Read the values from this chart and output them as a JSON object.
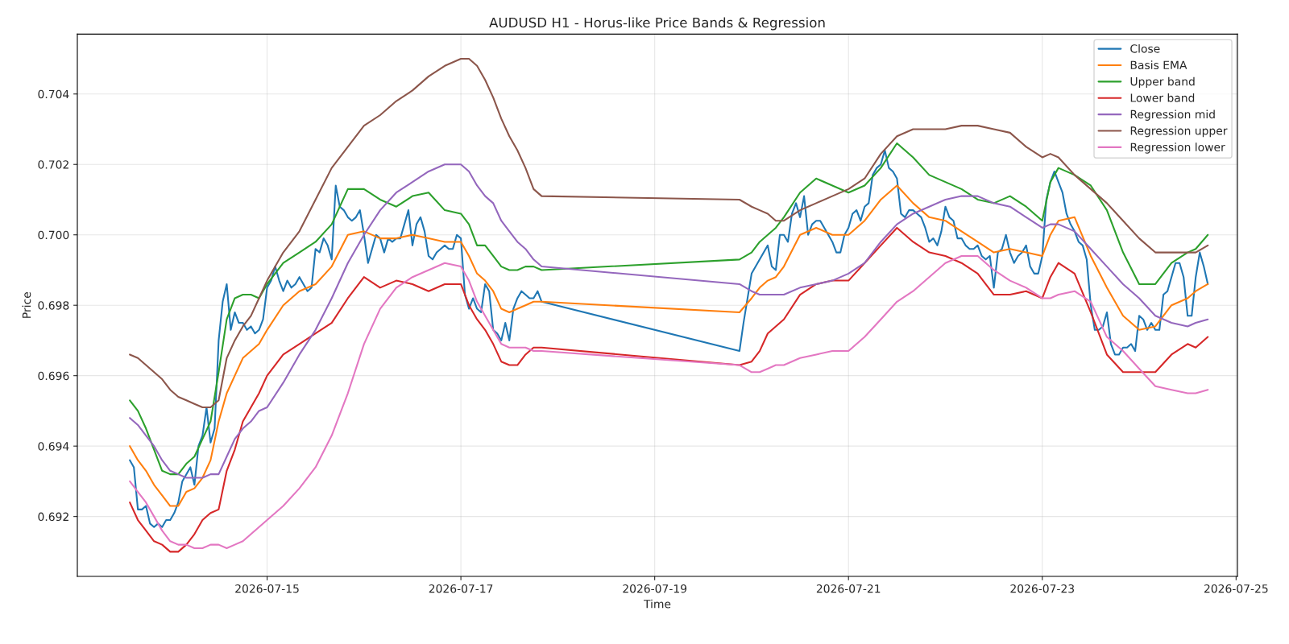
{
  "chart_data": {
    "type": "line",
    "title": "AUDUSD H1 - Horus-like Price Bands & Regression",
    "xlabel": "Time",
    "ylabel": "Price",
    "xlim": [
      "2026-07-13T01:00",
      "2026-07-25T00:20"
    ],
    "xticks": [
      "2026-07-15",
      "2026-07-17",
      "2026-07-19",
      "2026-07-21",
      "2026-07-23",
      "2026-07-25"
    ],
    "ylim": [
      0.6903,
      0.7057
    ],
    "yticks": [
      {
        "value": 0.692,
        "label": "0.692"
      },
      {
        "value": 0.694,
        "label": "0.694"
      },
      {
        "value": 0.696,
        "label": "0.696"
      },
      {
        "value": 0.698,
        "label": "0.698"
      },
      {
        "value": 0.7,
        "label": "0.700"
      },
      {
        "value": 0.702,
        "label": "0.702"
      },
      {
        "value": 0.704,
        "label": "0.704"
      }
    ],
    "grid": true,
    "legend": "top right",
    "marker": "none",
    "line_style": "solid",
    "x": [
      "2026-07-13T14:00",
      "2026-07-13T16:00",
      "2026-07-13T18:00",
      "2026-07-13T20:00",
      "2026-07-13T22:00",
      "2026-07-14T00:00",
      "2026-07-14T02:00",
      "2026-07-14T04:00",
      "2026-07-14T06:00",
      "2026-07-14T08:00",
      "2026-07-14T10:00",
      "2026-07-14T12:00",
      "2026-07-14T14:00",
      "2026-07-14T16:00",
      "2026-07-14T18:00",
      "2026-07-14T20:00",
      "2026-07-14T22:00",
      "2026-07-15T00:00",
      "2026-07-15T04:00",
      "2026-07-15T08:00",
      "2026-07-15T12:00",
      "2026-07-15T16:00",
      "2026-07-15T20:00",
      "2026-07-16T00:00",
      "2026-07-16T04:00",
      "2026-07-16T08:00",
      "2026-07-16T12:00",
      "2026-07-16T16:00",
      "2026-07-16T20:00",
      "2026-07-17T00:00",
      "2026-07-17T02:00",
      "2026-07-17T04:00",
      "2026-07-17T06:00",
      "2026-07-17T08:00",
      "2026-07-17T10:00",
      "2026-07-17T12:00",
      "2026-07-17T14:00",
      "2026-07-17T16:00",
      "2026-07-17T18:00",
      "2026-07-17T20:00",
      "2026-07-19T21:00",
      "2026-07-20T00:00",
      "2026-07-20T02:00",
      "2026-07-20T04:00",
      "2026-07-20T06:00",
      "2026-07-20T08:00",
      "2026-07-20T12:00",
      "2026-07-20T16:00",
      "2026-07-20T20:00",
      "2026-07-21T00:00",
      "2026-07-21T04:00",
      "2026-07-21T08:00",
      "2026-07-21T12:00",
      "2026-07-21T16:00",
      "2026-07-21T20:00",
      "2026-07-22T00:00",
      "2026-07-22T04:00",
      "2026-07-22T08:00",
      "2026-07-22T12:00",
      "2026-07-22T16:00",
      "2026-07-22T20:00",
      "2026-07-23T00:00",
      "2026-07-23T02:00",
      "2026-07-23T04:00",
      "2026-07-23T08:00",
      "2026-07-23T12:00",
      "2026-07-23T16:00",
      "2026-07-23T20:00",
      "2026-07-24T00:00",
      "2026-07-24T04:00",
      "2026-07-24T08:00",
      "2026-07-24T12:00",
      "2026-07-24T14:00",
      "2026-07-24T17:00"
    ],
    "series": [
      {
        "name": "Close",
        "color": "#1f77b4",
        "x": [
          "2026-07-13T14:00",
          "2026-07-13T15:00",
          "2026-07-13T16:00",
          "2026-07-13T17:00",
          "2026-07-13T18:00",
          "2026-07-13T19:00",
          "2026-07-13T20:00",
          "2026-07-13T21:00",
          "2026-07-13T22:00",
          "2026-07-13T23:00",
          "2026-07-14T00:00",
          "2026-07-14T01:00",
          "2026-07-14T02:00",
          "2026-07-14T03:00",
          "2026-07-14T04:00",
          "2026-07-14T05:00",
          "2026-07-14T06:00",
          "2026-07-14T07:00",
          "2026-07-14T08:00",
          "2026-07-14T09:00",
          "2026-07-14T10:00",
          "2026-07-14T11:00",
          "2026-07-14T12:00",
          "2026-07-14T13:00",
          "2026-07-14T14:00",
          "2026-07-14T15:00",
          "2026-07-14T16:00",
          "2026-07-14T17:00",
          "2026-07-14T18:00",
          "2026-07-14T19:00",
          "2026-07-14T20:00",
          "2026-07-14T21:00",
          "2026-07-14T22:00",
          "2026-07-14T23:00",
          "2026-07-15T00:00",
          "2026-07-15T01:00",
          "2026-07-15T02:00",
          "2026-07-15T03:00",
          "2026-07-15T04:00",
          "2026-07-15T05:00",
          "2026-07-15T06:00",
          "2026-07-15T07:00",
          "2026-07-15T08:00",
          "2026-07-15T09:00",
          "2026-07-15T10:00",
          "2026-07-15T11:00",
          "2026-07-15T12:00",
          "2026-07-15T13:00",
          "2026-07-15T14:00",
          "2026-07-15T15:00",
          "2026-07-15T16:00",
          "2026-07-15T17:00",
          "2026-07-15T18:00",
          "2026-07-15T19:00",
          "2026-07-15T20:00",
          "2026-07-15T21:00",
          "2026-07-15T22:00",
          "2026-07-15T23:00",
          "2026-07-16T00:00",
          "2026-07-16T01:00",
          "2026-07-16T02:00",
          "2026-07-16T03:00",
          "2026-07-16T04:00",
          "2026-07-16T05:00",
          "2026-07-16T06:00",
          "2026-07-16T07:00",
          "2026-07-16T08:00",
          "2026-07-16T09:00",
          "2026-07-16T10:00",
          "2026-07-16T11:00",
          "2026-07-16T12:00",
          "2026-07-16T13:00",
          "2026-07-16T14:00",
          "2026-07-16T15:00",
          "2026-07-16T16:00",
          "2026-07-16T17:00",
          "2026-07-16T18:00",
          "2026-07-16T19:00",
          "2026-07-16T20:00",
          "2026-07-16T21:00",
          "2026-07-16T22:00",
          "2026-07-16T23:00",
          "2026-07-17T00:00",
          "2026-07-17T01:00",
          "2026-07-17T02:00",
          "2026-07-17T03:00",
          "2026-07-17T04:00",
          "2026-07-17T05:00",
          "2026-07-17T06:00",
          "2026-07-17T07:00",
          "2026-07-17T08:00",
          "2026-07-17T09:00",
          "2026-07-17T10:00",
          "2026-07-17T11:00",
          "2026-07-17T12:00",
          "2026-07-17T13:00",
          "2026-07-17T14:00",
          "2026-07-17T15:00",
          "2026-07-17T16:00",
          "2026-07-17T17:00",
          "2026-07-17T18:00",
          "2026-07-17T19:00",
          "2026-07-17T20:00",
          "2026-07-19T21:00",
          "2026-07-19T22:00",
          "2026-07-19T23:00",
          "2026-07-20T00:00",
          "2026-07-20T01:00",
          "2026-07-20T02:00",
          "2026-07-20T03:00",
          "2026-07-20T04:00",
          "2026-07-20T05:00",
          "2026-07-20T06:00",
          "2026-07-20T07:00",
          "2026-07-20T08:00",
          "2026-07-20T09:00",
          "2026-07-20T10:00",
          "2026-07-20T11:00",
          "2026-07-20T12:00",
          "2026-07-20T13:00",
          "2026-07-20T14:00",
          "2026-07-20T15:00",
          "2026-07-20T16:00",
          "2026-07-20T17:00",
          "2026-07-20T18:00",
          "2026-07-20T19:00",
          "2026-07-20T20:00",
          "2026-07-20T21:00",
          "2026-07-20T22:00",
          "2026-07-20T23:00",
          "2026-07-21T00:00",
          "2026-07-21T01:00",
          "2026-07-21T02:00",
          "2026-07-21T03:00",
          "2026-07-21T04:00",
          "2026-07-21T05:00",
          "2026-07-21T06:00",
          "2026-07-21T07:00",
          "2026-07-21T08:00",
          "2026-07-21T09:00",
          "2026-07-21T10:00",
          "2026-07-21T11:00",
          "2026-07-21T12:00",
          "2026-07-21T13:00",
          "2026-07-21T14:00",
          "2026-07-21T15:00",
          "2026-07-21T16:00",
          "2026-07-21T17:00",
          "2026-07-21T18:00",
          "2026-07-21T19:00",
          "2026-07-21T20:00",
          "2026-07-21T21:00",
          "2026-07-21T22:00",
          "2026-07-21T23:00",
          "2026-07-22T00:00",
          "2026-07-22T01:00",
          "2026-07-22T02:00",
          "2026-07-22T03:00",
          "2026-07-22T04:00",
          "2026-07-22T05:00",
          "2026-07-22T06:00",
          "2026-07-22T07:00",
          "2026-07-22T08:00",
          "2026-07-22T09:00",
          "2026-07-22T10:00",
          "2026-07-22T11:00",
          "2026-07-22T12:00",
          "2026-07-22T13:00",
          "2026-07-22T14:00",
          "2026-07-22T15:00",
          "2026-07-22T16:00",
          "2026-07-22T17:00",
          "2026-07-22T18:00",
          "2026-07-22T19:00",
          "2026-07-22T20:00",
          "2026-07-22T21:00",
          "2026-07-22T22:00",
          "2026-07-22T23:00",
          "2026-07-23T00:00",
          "2026-07-23T01:00",
          "2026-07-23T02:00",
          "2026-07-23T03:00",
          "2026-07-23T04:00",
          "2026-07-23T05:00",
          "2026-07-23T06:00",
          "2026-07-23T07:00",
          "2026-07-23T08:00",
          "2026-07-23T09:00",
          "2026-07-23T10:00",
          "2026-07-23T11:00",
          "2026-07-23T12:00",
          "2026-07-23T13:00",
          "2026-07-23T14:00",
          "2026-07-23T15:00",
          "2026-07-23T16:00",
          "2026-07-23T17:00",
          "2026-07-23T18:00",
          "2026-07-23T19:00",
          "2026-07-23T20:00",
          "2026-07-23T21:00",
          "2026-07-23T22:00",
          "2026-07-23T23:00",
          "2026-07-24T00:00",
          "2026-07-24T01:00",
          "2026-07-24T02:00",
          "2026-07-24T03:00",
          "2026-07-24T04:00",
          "2026-07-24T05:00",
          "2026-07-24T06:00",
          "2026-07-24T07:00",
          "2026-07-24T08:00",
          "2026-07-24T09:00",
          "2026-07-24T10:00",
          "2026-07-24T11:00",
          "2026-07-24T12:00",
          "2026-07-24T13:00",
          "2026-07-24T14:00",
          "2026-07-24T15:00",
          "2026-07-24T16:00",
          "2026-07-24T17:00"
        ],
        "values": [
          0.6936,
          0.6934,
          0.6922,
          0.6922,
          0.6923,
          0.6918,
          0.6917,
          0.6918,
          0.6917,
          0.6919,
          0.6919,
          0.6921,
          0.6924,
          0.693,
          0.6932,
          0.6934,
          0.6929,
          0.694,
          0.6943,
          0.6951,
          0.6941,
          0.6945,
          0.697,
          0.6981,
          0.6986,
          0.6973,
          0.6978,
          0.6975,
          0.6975,
          0.6973,
          0.6974,
          0.6972,
          0.6973,
          0.6976,
          0.6985,
          0.6987,
          0.6991,
          0.6987,
          0.6984,
          0.6987,
          0.6985,
          0.6986,
          0.6988,
          0.6986,
          0.6984,
          0.6985,
          0.6996,
          0.6995,
          0.6999,
          0.6997,
          0.6993,
          0.7014,
          0.7008,
          0.7007,
          0.7005,
          0.7004,
          0.7005,
          0.7007,
          0.7,
          0.6992,
          0.6996,
          0.7,
          0.6999,
          0.6995,
          0.6999,
          0.6998,
          0.6999,
          0.6999,
          0.7003,
          0.7007,
          0.6997,
          0.7003,
          0.7005,
          0.7001,
          0.6994,
          0.6993,
          0.6995,
          0.6996,
          0.6997,
          0.6996,
          0.6996,
          0.7,
          0.6999,
          0.6983,
          0.6979,
          0.6982,
          0.6979,
          0.6978,
          0.6986,
          0.6984,
          0.6973,
          0.6972,
          0.697,
          0.6975,
          0.697,
          0.6979,
          0.6982,
          0.6984,
          0.6983,
          0.6982,
          0.6982,
          0.6984,
          0.6981,
          0.6967,
          0.6975,
          0.6982,
          0.6989,
          0.6991,
          0.6993,
          0.6995,
          0.6997,
          0.6991,
          0.699,
          0.7,
          0.7,
          0.6998,
          0.7006,
          0.7009,
          0.7005,
          0.7011,
          0.7,
          0.7003,
          0.7004,
          0.7004,
          0.7002,
          0.7,
          0.6998,
          0.6995,
          0.6995,
          0.7,
          0.7002,
          0.7006,
          0.7007,
          0.7004,
          0.7008,
          0.7009,
          0.7017,
          0.7019,
          0.702,
          0.7024,
          0.7019,
          0.7018,
          0.7016,
          0.7006,
          0.7005,
          0.7007,
          0.7007,
          0.7006,
          0.7005,
          0.7002,
          0.6998,
          0.6999,
          0.6997,
          0.7001,
          0.7008,
          0.7005,
          0.7004,
          0.6999,
          0.6999,
          0.6997,
          0.6996,
          0.6996,
          0.6997,
          0.6994,
          0.6993,
          0.6994,
          0.6985,
          0.6995,
          0.6996,
          0.7,
          0.6995,
          0.6992,
          0.6994,
          0.6995,
          0.6997,
          0.6991,
          0.6989,
          0.6989,
          0.6994,
          0.701,
          0.7015,
          0.7018,
          0.7015,
          0.7012,
          0.7006,
          0.7003,
          0.7001,
          0.6998,
          0.6997,
          0.6993,
          0.698,
          0.6973,
          0.6973,
          0.6974,
          0.6978,
          0.6969,
          0.6966,
          0.6966,
          0.6968,
          0.6968,
          0.6969,
          0.6967,
          0.6977,
          0.6976,
          0.6973,
          0.6975,
          0.6973,
          0.6973,
          0.6983,
          0.6984,
          0.6988,
          0.6992,
          0.6992,
          0.6988,
          0.6977,
          0.6977,
          0.6988,
          0.6995,
          0.6991,
          0.6986
        ]
      },
      {
        "name": "Basis EMA",
        "color": "#ff7f0e",
        "values": [
          0.694,
          0.6936,
          0.6933,
          0.6929,
          0.6926,
          0.6923,
          0.6923,
          0.6927,
          0.6928,
          0.6931,
          0.6936,
          0.6947,
          0.6955,
          0.696,
          0.6965,
          0.6967,
          0.6969,
          0.6973,
          0.698,
          0.6984,
          0.6986,
          0.6991,
          0.7,
          0.7001,
          0.6999,
          0.6999,
          0.7,
          0.6999,
          0.6998,
          0.6998,
          0.6994,
          0.6989,
          0.6987,
          0.6984,
          0.6979,
          0.6978,
          0.6979,
          0.698,
          0.6981,
          0.6981,
          0.6978,
          0.6982,
          0.6985,
          0.6987,
          0.6988,
          0.6991,
          0.7,
          0.7002,
          0.7,
          0.7,
          0.7004,
          0.701,
          0.7014,
          0.7009,
          0.7005,
          0.7004,
          0.7001,
          0.6998,
          0.6995,
          0.6996,
          0.6995,
          0.6994,
          0.7,
          0.7004,
          0.7005,
          0.6994,
          0.6985,
          0.6977,
          0.6973,
          0.6974,
          0.698,
          0.6982,
          0.6984,
          0.6986
        ]
      },
      {
        "name": "Upper band",
        "color": "#2ca02c",
        "values": [
          0.6953,
          0.695,
          0.6945,
          0.6939,
          0.6933,
          0.6932,
          0.6932,
          0.6935,
          0.6937,
          0.6942,
          0.6947,
          0.6961,
          0.6976,
          0.6982,
          0.6983,
          0.6983,
          0.6982,
          0.6986,
          0.6992,
          0.6995,
          0.6998,
          0.7003,
          0.7013,
          0.7013,
          0.701,
          0.7008,
          0.7011,
          0.7012,
          0.7007,
          0.7006,
          0.7003,
          0.6997,
          0.6997,
          0.6994,
          0.6991,
          0.699,
          0.699,
          0.6991,
          0.6991,
          0.699,
          0.6993,
          0.6995,
          0.6998,
          0.7,
          0.7002,
          0.7005,
          0.7012,
          0.7016,
          0.7014,
          0.7012,
          0.7014,
          0.7019,
          0.7026,
          0.7022,
          0.7017,
          0.7015,
          0.7013,
          0.701,
          0.7009,
          0.7011,
          0.7008,
          0.7004,
          0.7015,
          0.7019,
          0.7017,
          0.7014,
          0.7007,
          0.6995,
          0.6986,
          0.6986,
          0.6992,
          0.6995,
          0.6996,
          0.7
        ]
      },
      {
        "name": "Lower band",
        "color": "#d62728",
        "values": [
          0.6924,
          0.6919,
          0.6916,
          0.6913,
          0.6912,
          0.691,
          0.691,
          0.6912,
          0.6915,
          0.6919,
          0.6921,
          0.6922,
          0.6933,
          0.6939,
          0.6947,
          0.6951,
          0.6955,
          0.696,
          0.6966,
          0.6969,
          0.6972,
          0.6975,
          0.6982,
          0.6988,
          0.6985,
          0.6987,
          0.6986,
          0.6984,
          0.6986,
          0.6986,
          0.698,
          0.6976,
          0.6973,
          0.6969,
          0.6964,
          0.6963,
          0.6963,
          0.6966,
          0.6968,
          0.6968,
          0.6963,
          0.6964,
          0.6967,
          0.6972,
          0.6974,
          0.6976,
          0.6983,
          0.6986,
          0.6987,
          0.6987,
          0.6992,
          0.6997,
          0.7002,
          0.6998,
          0.6995,
          0.6994,
          0.6992,
          0.6989,
          0.6983,
          0.6983,
          0.6984,
          0.6982,
          0.6988,
          0.6992,
          0.6989,
          0.6978,
          0.6966,
          0.6961,
          0.6961,
          0.6961,
          0.6966,
          0.6969,
          0.6968,
          0.6971
        ]
      },
      {
        "name": "Regression mid",
        "color": "#9467bd",
        "values": [
          0.6948,
          0.6946,
          0.6943,
          0.694,
          0.6936,
          0.6933,
          0.6932,
          0.6931,
          0.6931,
          0.6931,
          0.6932,
          0.6932,
          0.6937,
          0.6942,
          0.6945,
          0.6947,
          0.695,
          0.6951,
          0.6958,
          0.6966,
          0.6973,
          0.6982,
          0.6992,
          0.7,
          0.7007,
          0.7012,
          0.7015,
          0.7018,
          0.702,
          0.702,
          0.7018,
          0.7014,
          0.7011,
          0.7009,
          0.7004,
          0.7001,
          0.6998,
          0.6996,
          0.6993,
          0.6991,
          0.6986,
          0.6984,
          0.6983,
          0.6983,
          0.6983,
          0.6983,
          0.6985,
          0.6986,
          0.6987,
          0.6989,
          0.6992,
          0.6998,
          0.7003,
          0.7006,
          0.7008,
          0.701,
          0.7011,
          0.7011,
          0.7009,
          0.7008,
          0.7005,
          0.7002,
          0.7003,
          0.7003,
          0.7001,
          0.6996,
          0.6991,
          0.6986,
          0.6982,
          0.6977,
          0.6975,
          0.6974,
          0.6975,
          0.6976
        ]
      },
      {
        "name": "Regression upper",
        "color": "#8c564b",
        "values": [
          0.6966,
          0.6965,
          0.6963,
          0.6961,
          0.6959,
          0.6956,
          0.6954,
          0.6953,
          0.6952,
          0.6951,
          0.6951,
          0.6953,
          0.6965,
          0.697,
          0.6974,
          0.6977,
          0.6982,
          0.6987,
          0.6995,
          0.7001,
          0.701,
          0.7019,
          0.7025,
          0.7031,
          0.7034,
          0.7038,
          0.7041,
          0.7045,
          0.7048,
          0.705,
          0.705,
          0.7048,
          0.7044,
          0.7039,
          0.7033,
          0.7028,
          0.7024,
          0.7019,
          0.7013,
          0.7011,
          0.701,
          0.7008,
          0.7007,
          0.7006,
          0.7004,
          0.7004,
          0.7007,
          0.7009,
          0.7011,
          0.7013,
          0.7016,
          0.7023,
          0.7028,
          0.703,
          0.703,
          0.703,
          0.7031,
          0.7031,
          0.703,
          0.7029,
          0.7025,
          0.7022,
          0.7023,
          0.7022,
          0.7017,
          0.7013,
          0.7009,
          0.7004,
          0.6999,
          0.6995,
          0.6995,
          0.6995,
          0.6995,
          0.6997
        ]
      },
      {
        "name": "Regression lower",
        "color": "#e377c2",
        "values": [
          0.693,
          0.6927,
          0.6924,
          0.692,
          0.6916,
          0.6913,
          0.6912,
          0.6912,
          0.6911,
          0.6911,
          0.6912,
          0.6912,
          0.6911,
          0.6912,
          0.6913,
          0.6915,
          0.6917,
          0.6919,
          0.6923,
          0.6928,
          0.6934,
          0.6943,
          0.6955,
          0.6969,
          0.6979,
          0.6985,
          0.6988,
          0.699,
          0.6992,
          0.6991,
          0.6987,
          0.6981,
          0.6977,
          0.6973,
          0.6969,
          0.6968,
          0.6968,
          0.6968,
          0.6967,
          0.6967,
          0.6963,
          0.6961,
          0.6961,
          0.6962,
          0.6963,
          0.6963,
          0.6965,
          0.6966,
          0.6967,
          0.6967,
          0.6971,
          0.6976,
          0.6981,
          0.6984,
          0.6988,
          0.6992,
          0.6994,
          0.6994,
          0.699,
          0.6987,
          0.6985,
          0.6982,
          0.6982,
          0.6983,
          0.6984,
          0.6981,
          0.6971,
          0.6967,
          0.6962,
          0.6957,
          0.6956,
          0.6955,
          0.6955,
          0.6956
        ]
      }
    ]
  }
}
